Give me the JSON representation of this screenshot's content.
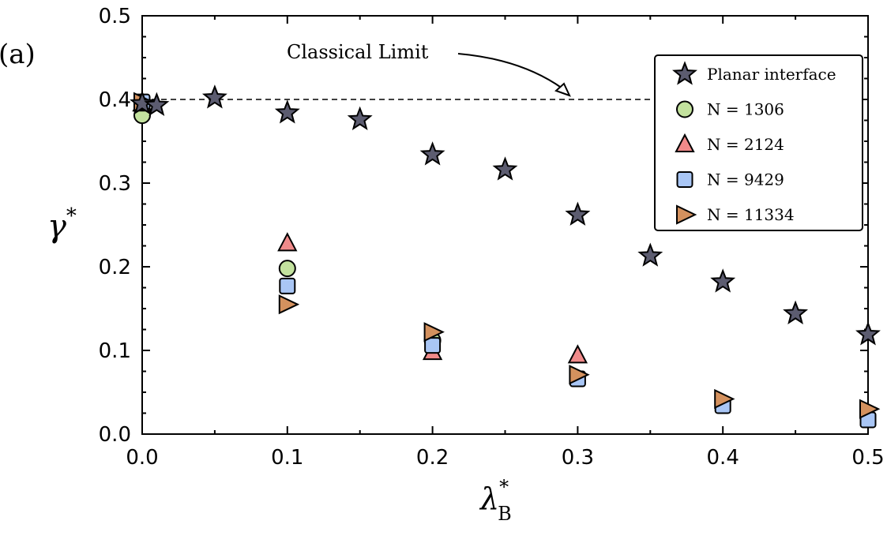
{
  "chart_data": {
    "type": "scatter",
    "panel_label": "(a)",
    "xlabel": "λ",
    "xlabel_sub": "B",
    "xlabel_sup": "*",
    "ylabel": "γ",
    "ylabel_sup": "*",
    "xlim": [
      0.0,
      0.5
    ],
    "ylim": [
      0.0,
      0.5
    ],
    "xticks": [
      "0.0",
      "0.1",
      "0.2",
      "0.3",
      "0.4",
      "0.5"
    ],
    "yticks": [
      "0.0",
      "0.1",
      "0.2",
      "0.3",
      "0.4",
      "0.5"
    ],
    "grid": false,
    "legend_position": "top-right",
    "reference_line": {
      "y": 0.4,
      "style": "dashed"
    },
    "annotation": {
      "text": "Classical Limit",
      "points_to": [
        0.29,
        0.4
      ]
    },
    "series": [
      {
        "name": "Planar interface",
        "marker": "star",
        "color": "#5c5c70",
        "x": [
          0.0,
          0.01,
          0.05,
          0.1,
          0.15,
          0.2,
          0.25,
          0.3,
          0.35,
          0.4,
          0.45,
          0.5
        ],
        "y": [
          0.395,
          0.393,
          0.402,
          0.384,
          0.376,
          0.334,
          0.316,
          0.262,
          0.213,
          0.182,
          0.144,
          0.119
        ]
      },
      {
        "name": "N = 1306",
        "marker": "circle",
        "color": "#c3e29e",
        "x": [
          0.0,
          0.1,
          0.2
        ],
        "y": [
          0.381,
          0.198,
          0.112
        ]
      },
      {
        "name": "N = 2124",
        "marker": "triangle",
        "color": "#f08a8a",
        "x": [
          0.0,
          0.1,
          0.2,
          0.3
        ],
        "y": [
          0.395,
          0.228,
          0.098,
          0.094
        ]
      },
      {
        "name": "N = 9429",
        "marker": "square",
        "color": "#a9c6f5",
        "x": [
          0.0,
          0.1,
          0.2,
          0.3,
          0.4,
          0.5
        ],
        "y": [
          0.397,
          0.177,
          0.106,
          0.066,
          0.034,
          0.017
        ]
      },
      {
        "name": "N = 11334",
        "marker": "triangle-right",
        "color": "#d4915e",
        "x": [
          0.0,
          0.1,
          0.2,
          0.3,
          0.4,
          0.5
        ],
        "y": [
          0.397,
          0.155,
          0.122,
          0.071,
          0.042,
          0.03
        ]
      }
    ]
  }
}
